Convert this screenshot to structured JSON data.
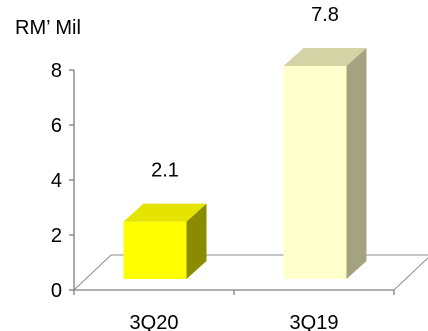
{
  "chart_data": {
    "type": "bar",
    "title": "",
    "ylabel": "RM’ Mil",
    "xlabel": "",
    "categories": [
      "3Q20",
      "3Q19"
    ],
    "values": [
      2.1,
      7.8
    ],
    "data_labels": [
      "2.1",
      "7.8"
    ],
    "ylim": [
      0,
      8
    ],
    "yticks": [
      "0",
      "2",
      "4",
      "6",
      "8"
    ],
    "grid": false,
    "legend": "none",
    "bar_colors": [
      {
        "front": "#ffff00",
        "top": "#e4e400",
        "side": "#8b8b00"
      },
      {
        "front": "#ffffcc",
        "top": "#d3d3a6",
        "side": "#a3a380"
      }
    ]
  }
}
